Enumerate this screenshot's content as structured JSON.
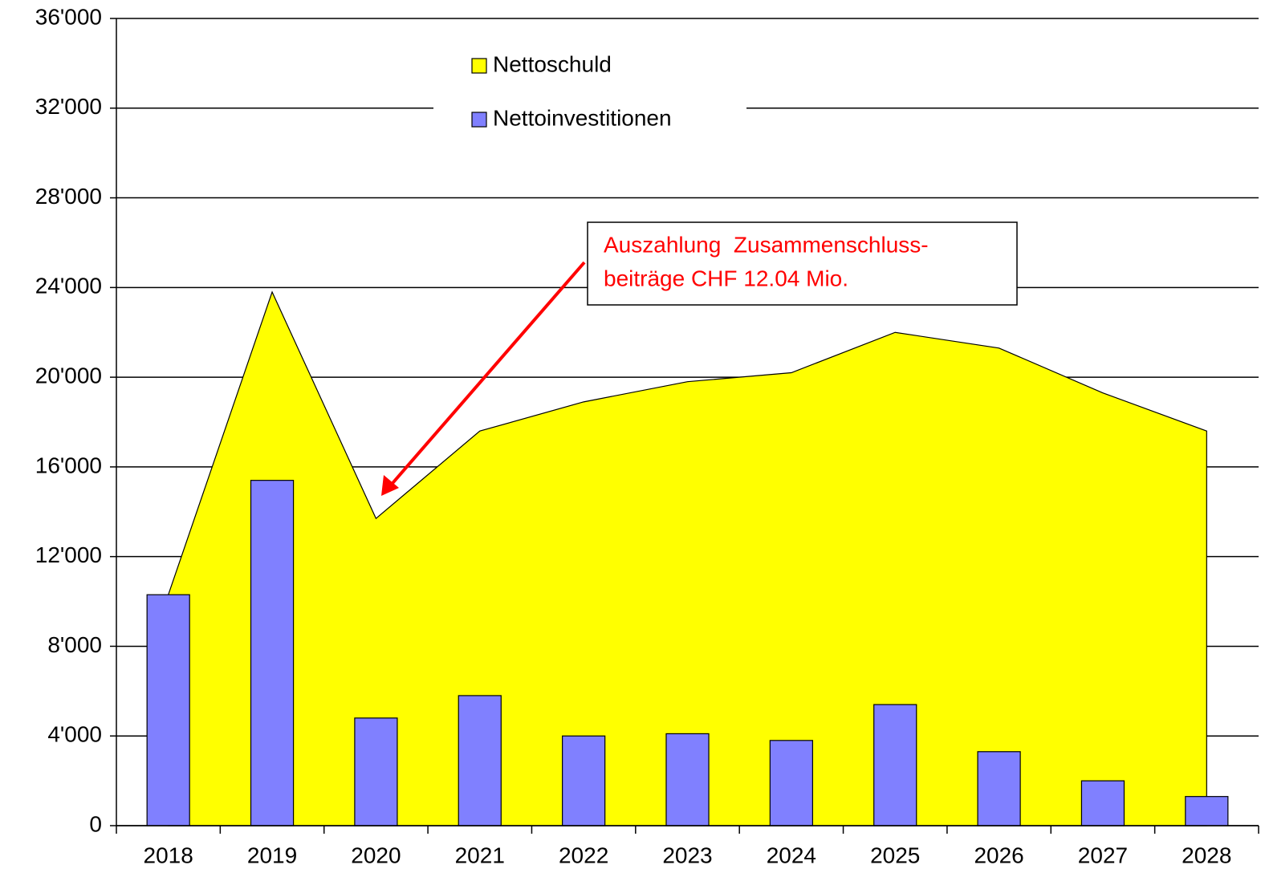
{
  "chart_data": {
    "type": "bar",
    "categories": [
      "2018",
      "2019",
      "2020",
      "2021",
      "2022",
      "2023",
      "2024",
      "2025",
      "2026",
      "2027",
      "2028"
    ],
    "series": [
      {
        "name": "Nettoschuld",
        "type": "area",
        "color": "#ffff00",
        "values": [
          10300,
          23800,
          13700,
          17600,
          18900,
          19800,
          20200,
          22000,
          21300,
          19300,
          17600
        ]
      },
      {
        "name": "Nettoinvestitionen",
        "type": "bar",
        "color": "#8080ff",
        "values": [
          10300,
          15400,
          4800,
          5800,
          4000,
          4100,
          3800,
          5400,
          3300,
          2000,
          1300
        ]
      }
    ],
    "ylim": [
      0,
      36000
    ],
    "yticks": [
      0,
      {
        "value": 4000,
        "label": "4'000"
      },
      {
        "value": 8000,
        "label": "8'000"
      },
      {
        "value": 12000,
        "label": "12'000"
      },
      {
        "value": 16000,
        "label": "16'000"
      },
      {
        "value": 20000,
        "label": "20'000"
      },
      {
        "value": 24000,
        "label": "24'000"
      },
      {
        "value": 28000,
        "label": "28'000"
      },
      {
        "value": 32000,
        "label": "32'000"
      },
      {
        "value": 36000,
        "label": "36'000"
      }
    ],
    "grid": true,
    "annotation": [
      "Auszahlung  Zusammenschluss-",
      "beiträge CHF 12.04 Mio."
    ]
  }
}
